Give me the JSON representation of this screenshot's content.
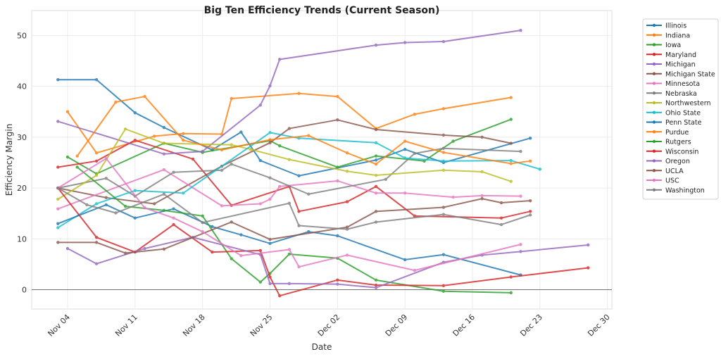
{
  "chart_data": {
    "type": "line",
    "title": "Big Ten Efficiency Trends (Current Season)",
    "xlabel": "Date",
    "ylabel": "Efficiency Margin",
    "x_ticks": [
      "Nov 04",
      "Nov 11",
      "Nov 18",
      "Nov 25",
      "Dec 02",
      "Dec 09",
      "Dec 16",
      "Dec 23",
      "Dec 30"
    ],
    "y_ticks": [
      0,
      10,
      20,
      30,
      40,
      50
    ],
    "ylim": [
      -3.8,
      54.9
    ],
    "xlim": [
      "11-01",
      "12-31"
    ],
    "grid": true,
    "reference_line": 0,
    "legend_position": "outside-right",
    "series": [
      {
        "name": "Illinois",
        "color": "#1f77b4",
        "points": [
          [
            "11-03",
            41.3
          ],
          [
            "11-07",
            41.3
          ],
          [
            "11-11",
            34.8
          ],
          [
            "11-14",
            31.9
          ],
          [
            "11-19",
            27.5
          ],
          [
            "11-22",
            31.0
          ],
          [
            "11-24",
            25.4
          ],
          [
            "11-28",
            22.4
          ],
          [
            "12-06",
            25.5
          ],
          [
            "12-09",
            27.6
          ],
          [
            "12-13",
            25.0
          ],
          [
            "12-22",
            29.8
          ]
        ]
      },
      {
        "name": "Indiana",
        "color": "#ff7f0e",
        "points": [
          [
            "11-04",
            35.0
          ],
          [
            "11-07",
            26.9
          ],
          [
            "11-13",
            30.2
          ],
          [
            "11-16",
            30.7
          ],
          [
            "11-20",
            30.6
          ],
          [
            "11-21",
            37.6
          ],
          [
            "11-28",
            38.6
          ],
          [
            "12-02",
            38.0
          ],
          [
            "12-06",
            31.7
          ],
          [
            "12-10",
            34.5
          ],
          [
            "12-13",
            35.6
          ],
          [
            "12-20",
            37.8
          ]
        ]
      },
      {
        "name": "Iowa",
        "color": "#2ca02c",
        "points": [
          [
            "11-04",
            26.1
          ],
          [
            "11-07",
            22.8
          ],
          [
            "11-14",
            28.8
          ],
          [
            "11-18",
            27.0
          ],
          [
            "11-25",
            29.3
          ],
          [
            "11-26",
            28.3
          ],
          [
            "12-02",
            24.1
          ],
          [
            "12-06",
            26.3
          ],
          [
            "12-11",
            25.3
          ],
          [
            "12-14",
            29.2
          ],
          [
            "12-20",
            33.5
          ]
        ]
      },
      {
        "name": "Maryland",
        "color": "#d62728",
        "points": [
          [
            "11-03",
            24.1
          ],
          [
            "11-07",
            25.3
          ],
          [
            "11-11",
            29.4
          ],
          [
            "11-17",
            25.7
          ],
          [
            "11-21",
            16.6
          ],
          [
            "11-27",
            20.3
          ],
          [
            "11-28",
            15.4
          ],
          [
            "12-03",
            17.3
          ],
          [
            "12-06",
            20.3
          ],
          [
            "12-10",
            14.5
          ],
          [
            "12-19",
            14.1
          ],
          [
            "12-22",
            15.4
          ]
        ]
      },
      {
        "name": "Michigan",
        "color": "#9467bd",
        "points": [
          [
            "11-03",
            33.1
          ],
          [
            "11-14",
            26.7
          ],
          [
            "11-18",
            27.2
          ],
          [
            "11-24",
            36.3
          ],
          [
            "11-25",
            40.1
          ],
          [
            "11-26",
            45.3
          ],
          [
            "12-06",
            48.1
          ],
          [
            "12-09",
            48.6
          ],
          [
            "12-13",
            48.8
          ],
          [
            "12-21",
            51.0
          ]
        ]
      },
      {
        "name": "Michigan State",
        "color": "#8c564b",
        "points": [
          [
            "11-03",
            20.0
          ],
          [
            "11-08",
            18.1
          ],
          [
            "11-13",
            16.9
          ],
          [
            "11-20",
            24.3
          ],
          [
            "11-25",
            28.9
          ],
          [
            "11-27",
            31.7
          ],
          [
            "12-02",
            33.4
          ],
          [
            "12-06",
            31.5
          ],
          [
            "12-13",
            30.4
          ],
          [
            "12-17",
            30.0
          ],
          [
            "12-20",
            28.8
          ]
        ]
      },
      {
        "name": "Minnesota",
        "color": "#e377c2",
        "points": [
          [
            "11-03",
            15.9
          ],
          [
            "11-14",
            23.6
          ],
          [
            "11-20",
            16.5
          ],
          [
            "11-24",
            16.9
          ],
          [
            "11-25",
            17.8
          ],
          [
            "11-26",
            20.3
          ],
          [
            "12-02",
            21.4
          ],
          [
            "12-06",
            19.0
          ],
          [
            "12-09",
            19.0
          ],
          [
            "12-14",
            18.2
          ],
          [
            "12-17",
            18.5
          ],
          [
            "12-21",
            18.4
          ]
        ]
      },
      {
        "name": "Nebraska",
        "color": "#7f7f7f",
        "points": [
          [
            "11-03",
            20.0
          ],
          [
            "11-08",
            21.9
          ],
          [
            "11-11",
            18.4
          ],
          [
            "11-15",
            23.1
          ],
          [
            "11-20",
            23.5
          ],
          [
            "11-21",
            24.7
          ],
          [
            "11-25",
            22.0
          ],
          [
            "11-29",
            18.8
          ],
          [
            "12-07",
            21.7
          ],
          [
            "12-10",
            26.8
          ],
          [
            "12-13",
            27.8
          ],
          [
            "12-21",
            27.2
          ]
        ]
      },
      {
        "name": "Northwestern",
        "color": "#bcbd22",
        "points": [
          [
            "11-03",
            17.8
          ],
          [
            "11-07",
            22.5
          ],
          [
            "11-10",
            31.6
          ],
          [
            "11-14",
            28.8
          ],
          [
            "11-21",
            28.5
          ],
          [
            "11-23",
            27.6
          ],
          [
            "11-27",
            25.6
          ],
          [
            "12-03",
            23.3
          ],
          [
            "12-06",
            22.5
          ],
          [
            "12-13",
            23.5
          ],
          [
            "12-17",
            23.2
          ],
          [
            "12-20",
            21.3
          ]
        ]
      },
      {
        "name": "Ohio State",
        "color": "#17becf",
        "points": [
          [
            "11-03",
            12.2
          ],
          [
            "11-07",
            16.9
          ],
          [
            "11-11",
            19.5
          ],
          [
            "11-16",
            19.0
          ],
          [
            "11-25",
            30.9
          ],
          [
            "11-28",
            29.8
          ],
          [
            "12-06",
            28.9
          ],
          [
            "12-09",
            25.9
          ],
          [
            "12-13",
            25.3
          ],
          [
            "12-20",
            25.4
          ],
          [
            "12-23",
            23.7
          ]
        ]
      },
      {
        "name": "Penn State",
        "color": "#1f77b4",
        "points": [
          [
            "11-03",
            13.0
          ],
          [
            "11-08",
            16.7
          ],
          [
            "11-11",
            14.1
          ],
          [
            "11-15",
            15.9
          ],
          [
            "11-19",
            12.4
          ],
          [
            "11-22",
            10.8
          ],
          [
            "11-25",
            9.1
          ],
          [
            "11-29",
            11.4
          ],
          [
            "12-02",
            10.6
          ],
          [
            "12-09",
            5.9
          ],
          [
            "12-13",
            6.9
          ],
          [
            "12-21",
            2.9
          ]
        ]
      },
      {
        "name": "Purdue",
        "color": "#ff7f0e",
        "points": [
          [
            "11-05",
            26.3
          ],
          [
            "11-09",
            36.9
          ],
          [
            "11-12",
            38.0
          ],
          [
            "11-16",
            29.4
          ],
          [
            "11-20",
            27.5
          ],
          [
            "11-25",
            29.5
          ],
          [
            "11-29",
            30.3
          ],
          [
            "12-03",
            26.9
          ],
          [
            "12-06",
            24.7
          ],
          [
            "12-09",
            29.2
          ],
          [
            "12-13",
            27.0
          ],
          [
            "12-20",
            24.8
          ],
          [
            "12-22",
            25.3
          ]
        ]
      },
      {
        "name": "Rutgers",
        "color": "#2ca02c",
        "points": [
          [
            "11-05",
            24.1
          ],
          [
            "11-10",
            16.4
          ],
          [
            "11-14",
            15.6
          ],
          [
            "11-18",
            14.5
          ],
          [
            "11-21",
            6.1
          ],
          [
            "11-24",
            1.5
          ],
          [
            "11-25",
            3.2
          ],
          [
            "11-27",
            7.0
          ],
          [
            "12-02",
            6.2
          ],
          [
            "12-06",
            1.9
          ],
          [
            "12-13",
            -0.3
          ],
          [
            "12-20",
            -0.6
          ]
        ]
      },
      {
        "name": "Wisconsin",
        "color": "#d62728",
        "points": [
          [
            "11-03",
            20.0
          ],
          [
            "11-07",
            10.3
          ],
          [
            "11-11",
            7.4
          ],
          [
            "11-15",
            12.8
          ],
          [
            "11-19",
            7.4
          ],
          [
            "11-24",
            7.7
          ],
          [
            "11-25",
            2.5
          ],
          [
            "11-26",
            -1.2
          ],
          [
            "12-02",
            1.9
          ],
          [
            "12-06",
            0.9
          ],
          [
            "12-13",
            0.8
          ],
          [
            "12-20",
            2.5
          ],
          [
            "12-28",
            4.3
          ]
        ]
      },
      {
        "name": "Oregon",
        "color": "#9467bd",
        "points": [
          [
            "11-04",
            8.1
          ],
          [
            "11-07",
            5.1
          ],
          [
            "11-12",
            8.1
          ],
          [
            "11-17",
            10.3
          ],
          [
            "11-24",
            6.9
          ],
          [
            "11-25",
            1.2
          ],
          [
            "11-27",
            1.2
          ],
          [
            "12-02",
            1.1
          ],
          [
            "12-06",
            0.4
          ],
          [
            "12-13",
            5.4
          ],
          [
            "12-17",
            6.8
          ],
          [
            "12-21",
            7.5
          ],
          [
            "12-28",
            8.8
          ]
        ]
      },
      {
        "name": "UCLA",
        "color": "#8c564b",
        "points": [
          [
            "11-03",
            9.3
          ],
          [
            "11-07",
            9.3
          ],
          [
            "11-10",
            7.2
          ],
          [
            "11-14",
            8.0
          ],
          [
            "11-21",
            13.3
          ],
          [
            "11-25",
            9.9
          ],
          [
            "12-03",
            12.3
          ],
          [
            "12-06",
            15.4
          ],
          [
            "12-13",
            16.2
          ],
          [
            "12-17",
            17.9
          ],
          [
            "12-19",
            17.1
          ],
          [
            "12-22",
            17.5
          ]
        ]
      },
      {
        "name": "USC",
        "color": "#e377c2",
        "points": [
          [
            "11-03",
            20.0
          ],
          [
            "11-08",
            25.8
          ],
          [
            "11-12",
            16.1
          ],
          [
            "11-15",
            14.1
          ],
          [
            "11-18",
            11.4
          ],
          [
            "11-22",
            6.7
          ],
          [
            "11-27",
            7.9
          ],
          [
            "11-28",
            4.5
          ],
          [
            "12-03",
            6.8
          ],
          [
            "12-10",
            3.8
          ],
          [
            "12-21",
            8.9
          ]
        ]
      },
      {
        "name": "Washington",
        "color": "#7f7f7f",
        "points": [
          [
            "11-03",
            20.0
          ],
          [
            "11-06",
            16.7
          ],
          [
            "11-09",
            15.1
          ],
          [
            "11-14",
            18.8
          ],
          [
            "11-18",
            13.2
          ],
          [
            "11-27",
            17.0
          ],
          [
            "11-28",
            12.6
          ],
          [
            "12-03",
            11.9
          ],
          [
            "12-06",
            13.3
          ],
          [
            "12-13",
            14.8
          ],
          [
            "12-19",
            12.8
          ],
          [
            "12-22",
            14.7
          ]
        ]
      }
    ]
  }
}
